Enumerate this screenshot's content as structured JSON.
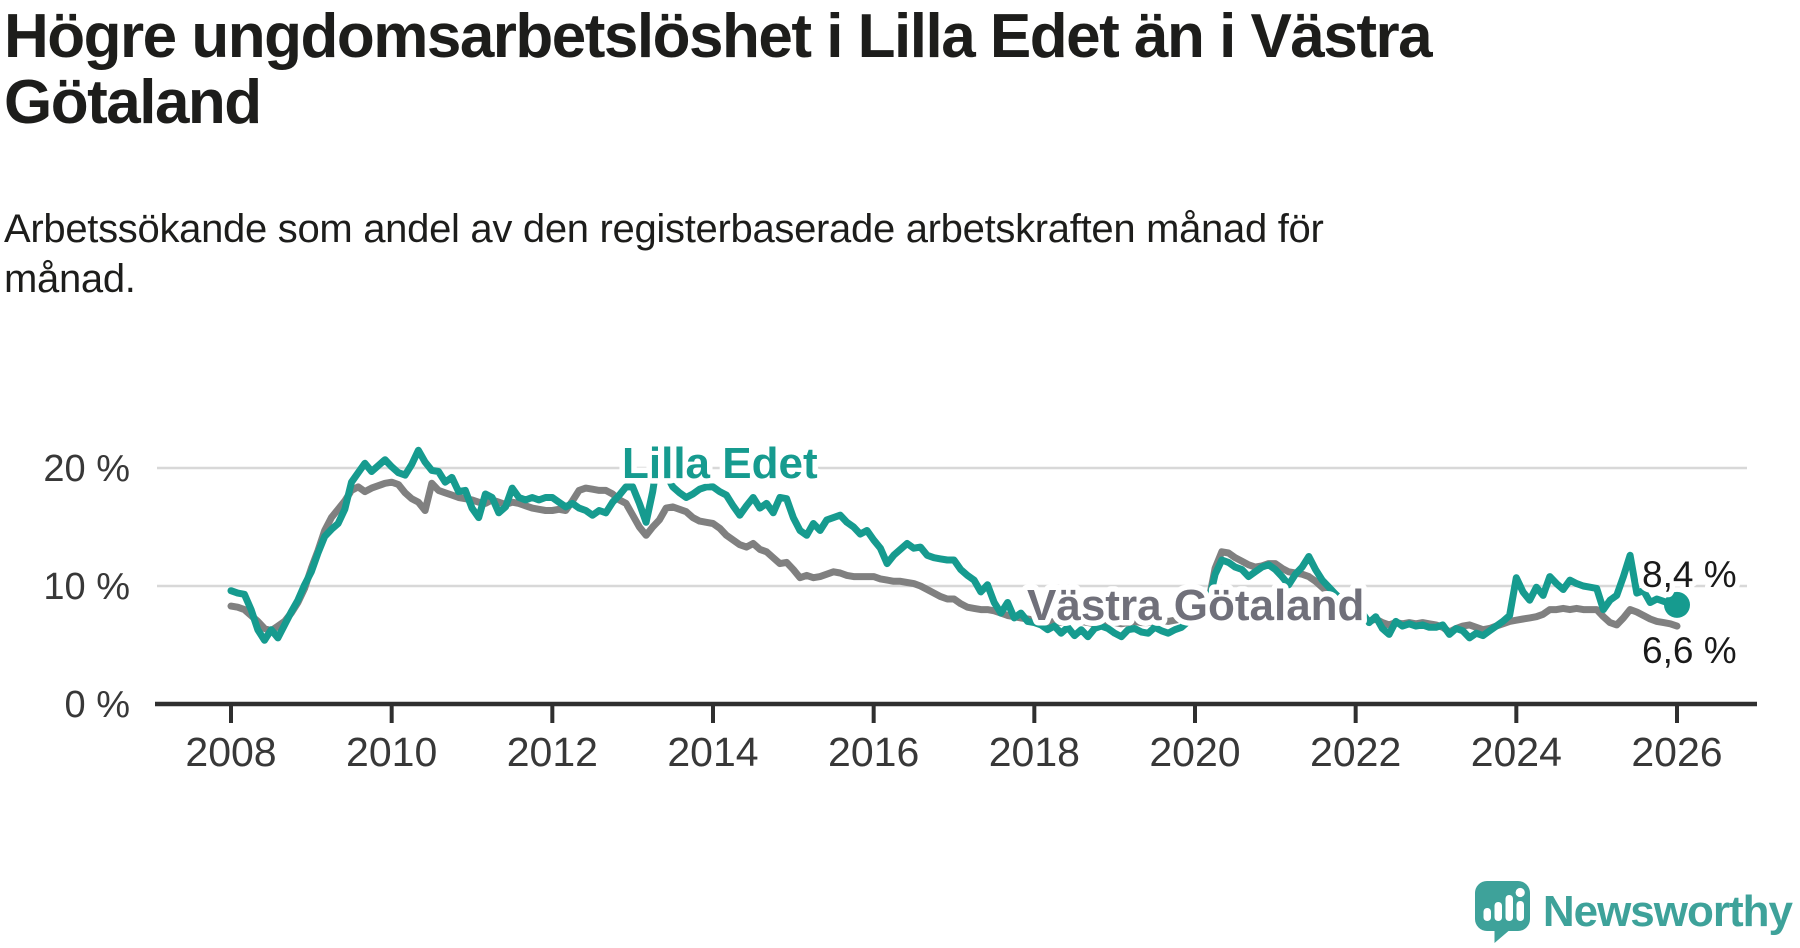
{
  "header": {
    "title_line1": "Högre ungdomsarbetslöshet i Lilla Edet än i Västra",
    "title_line2": "Götaland",
    "subtitle_line1": "Arbetssökande som andel av den registerbaserade arbetskraften månad för",
    "subtitle_line2": "månad."
  },
  "branding": {
    "logo_text": "Newsworthy",
    "logo_color": "#3EA29A",
    "logo_icon": "speech-bubble-bar-chart"
  },
  "colors": {
    "teal_line": "#169B8F",
    "gray_line": "#808080",
    "gray_label": "#70707A",
    "grid": "#D8D8D8",
    "axis": "#2F2F2F",
    "tick_text": "#383838",
    "value_text": "#1A1A1A",
    "background": "#FFFFFF"
  },
  "chart_data": {
    "type": "line",
    "title": "Högre ungdomsarbetslöshet i Lilla Edet än i Västra Götaland",
    "subtitle": "Arbetssökande som andel av den registerbaserade arbetskraften månad för månad.",
    "frequency": "monthly",
    "x_start": "2008-01",
    "x_end": "2026-01",
    "unit": "%",
    "grid": "horizontal",
    "legend_position": "inline-labels",
    "ylim": [
      0,
      22
    ],
    "x_tick_labels": [
      "2008",
      "2010",
      "2012",
      "2014",
      "2016",
      "2018",
      "2020",
      "2022",
      "2024",
      "2026"
    ],
    "y_ticks": [
      {
        "value": 0,
        "label": "0 %"
      },
      {
        "value": 10,
        "label": "10 %"
      },
      {
        "value": 20,
        "label": "20 %"
      }
    ],
    "series": [
      {
        "name": "Västra Götaland",
        "end_label": "6,6 %",
        "last_value": 6.6,
        "values": [
          8.3,
          8.2,
          8.0,
          7.5,
          7.0,
          6.4,
          6.2,
          6.6,
          7.0,
          7.7,
          8.6,
          9.8,
          11.5,
          13.0,
          14.7,
          15.8,
          16.5,
          17.2,
          18.1,
          18.4,
          18.0,
          18.3,
          18.5,
          18.7,
          18.8,
          18.6,
          17.9,
          17.4,
          17.1,
          16.4,
          18.7,
          18.1,
          17.9,
          17.7,
          17.5,
          17.4,
          17.3,
          17.1,
          17.0,
          17.3,
          17.1,
          16.9,
          17.1,
          17.0,
          16.8,
          16.6,
          16.5,
          16.4,
          16.4,
          16.5,
          16.4,
          17.2,
          18.1,
          18.3,
          18.2,
          18.1,
          18.1,
          17.8,
          17.3,
          17.0,
          16.0,
          15.0,
          14.3,
          15.0,
          15.6,
          16.6,
          16.7,
          16.5,
          16.3,
          15.8,
          15.5,
          15.4,
          15.3,
          14.9,
          14.3,
          13.9,
          13.5,
          13.3,
          13.6,
          13.1,
          12.9,
          12.4,
          11.9,
          12.0,
          11.4,
          10.7,
          10.9,
          10.7,
          10.8,
          11.0,
          11.2,
          11.1,
          10.9,
          10.8,
          10.8,
          10.8,
          10.8,
          10.6,
          10.5,
          10.4,
          10.4,
          10.3,
          10.2,
          10.0,
          9.7,
          9.4,
          9.1,
          8.9,
          8.9,
          8.5,
          8.2,
          8.1,
          8.0,
          8.0,
          7.9,
          7.7,
          7.5,
          7.4,
          7.3,
          7.2,
          7.1,
          7.0,
          6.9,
          7.0,
          6.9,
          7.0,
          7.1,
          7.0,
          6.9,
          6.8,
          6.9,
          7.0,
          6.9,
          6.8,
          6.9,
          7.0,
          6.9,
          6.9,
          7.0,
          7.1,
          7.0,
          7.1,
          7.2,
          7.4,
          7.6,
          7.7,
          8.6,
          11.5,
          12.9,
          12.8,
          12.4,
          12.1,
          11.8,
          11.6,
          11.7,
          11.9,
          11.9,
          11.5,
          11.2,
          11.1,
          11.0,
          10.8,
          10.4,
          9.9,
          9.4,
          8.9,
          8.5,
          8.2,
          8.0,
          7.4,
          7.0,
          7.2,
          6.9,
          6.7,
          6.9,
          6.8,
          6.9,
          6.8,
          6.9,
          6.8,
          6.7,
          6.5,
          6.1,
          6.4,
          6.6,
          6.7,
          6.5,
          6.3,
          6.4,
          6.6,
          6.8,
          7.0,
          7.1,
          7.2,
          7.3,
          7.4,
          7.6,
          8.0,
          8.0,
          8.1,
          8.0,
          8.1,
          8.0,
          8.0,
          8.0,
          7.4,
          6.9,
          6.7,
          7.3,
          8.0,
          7.8,
          7.5,
          7.2,
          7.0,
          6.9,
          6.8,
          6.6
        ]
      },
      {
        "name": "Lilla Edet",
        "end_label": "8,4 %",
        "last_value": 8.4,
        "values": [
          9.6,
          9.4,
          9.3,
          8.0,
          6.3,
          5.4,
          6.3,
          5.6,
          6.7,
          7.8,
          8.8,
          10.1,
          11.2,
          12.8,
          14.2,
          14.8,
          15.3,
          16.5,
          18.8,
          19.6,
          20.4,
          19.7,
          20.2,
          20.7,
          20.1,
          19.6,
          19.4,
          20.3,
          21.5,
          20.5,
          19.8,
          19.7,
          18.8,
          19.2,
          18.0,
          18.1,
          16.6,
          15.8,
          17.8,
          17.5,
          16.2,
          16.7,
          18.3,
          17.5,
          17.3,
          17.5,
          17.3,
          17.5,
          17.5,
          17.1,
          16.7,
          17.0,
          16.6,
          16.4,
          16.0,
          16.4,
          16.2,
          17.1,
          17.7,
          18.4,
          18.4,
          17.0,
          15.4,
          18.0,
          21.7,
          19.5,
          18.4,
          17.9,
          17.5,
          17.8,
          18.2,
          18.4,
          18.4,
          18.0,
          17.7,
          16.8,
          16.0,
          16.8,
          17.5,
          16.6,
          17.0,
          16.2,
          17.5,
          17.4,
          15.8,
          14.7,
          14.3,
          15.3,
          14.7,
          15.6,
          15.8,
          16.0,
          15.4,
          15.0,
          14.4,
          14.7,
          13.9,
          13.2,
          11.9,
          12.6,
          13.1,
          13.6,
          13.2,
          13.3,
          12.6,
          12.4,
          12.3,
          12.2,
          12.2,
          11.4,
          10.9,
          10.5,
          9.5,
          10.1,
          8.6,
          7.7,
          8.6,
          7.3,
          7.7,
          7.0,
          6.9,
          6.7,
          6.3,
          6.6,
          6.0,
          6.5,
          5.8,
          6.3,
          5.7,
          6.4,
          6.6,
          6.4,
          6.0,
          5.7,
          6.3,
          6.4,
          6.1,
          6.0,
          6.5,
          6.2,
          6.0,
          6.3,
          6.5,
          7.0,
          7.4,
          7.6,
          8.5,
          11.0,
          12.2,
          12.0,
          11.6,
          11.4,
          10.8,
          11.2,
          11.6,
          11.8,
          11.4,
          10.8,
          10.1,
          11.0,
          11.6,
          12.5,
          11.4,
          10.5,
          9.9,
          9.3,
          8.8,
          8.4,
          8.1,
          7.7,
          6.9,
          7.4,
          6.4,
          5.9,
          7.0,
          6.6,
          6.8,
          6.6,
          6.7,
          6.5,
          6.5,
          6.7,
          5.9,
          6.4,
          6.2,
          5.6,
          6.0,
          5.8,
          6.2,
          6.6,
          7.0,
          7.5,
          10.7,
          9.5,
          8.8,
          9.9,
          9.2,
          10.8,
          10.2,
          9.7,
          10.5,
          10.2,
          10.0,
          9.9,
          9.8,
          8.0,
          8.8,
          9.2,
          10.8,
          12.6,
          9.4,
          9.6,
          8.6,
          8.9,
          8.7,
          8.5,
          8.4
        ]
      }
    ]
  }
}
